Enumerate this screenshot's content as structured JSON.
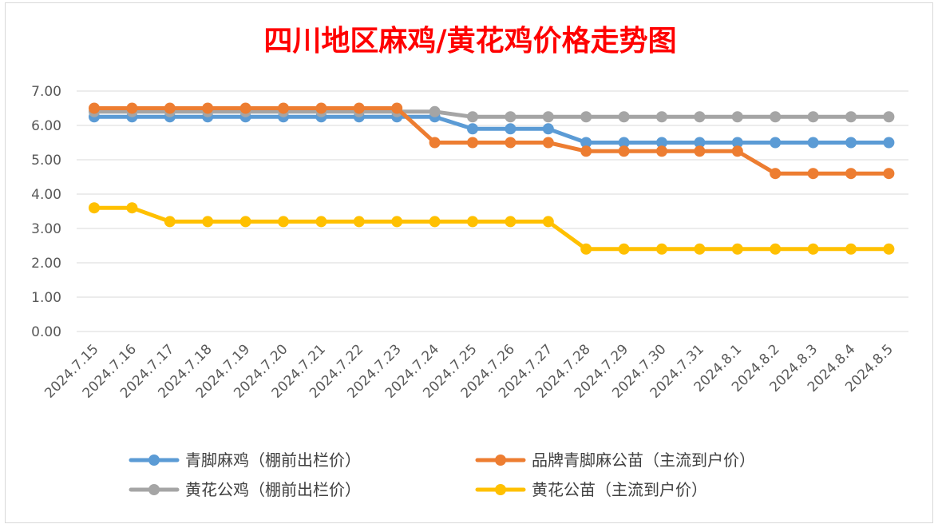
{
  "chart_data": {
    "type": "line",
    "title": "四川地区麻鸡/黄花鸡价格走势图",
    "xlabel": "",
    "ylabel": "",
    "ylim": [
      0,
      7
    ],
    "yticks": [
      "0.00",
      "1.00",
      "2.00",
      "3.00",
      "4.00",
      "5.00",
      "6.00",
      "7.00"
    ],
    "grid": true,
    "legend_position": "bottom",
    "categories": [
      "2024.7.15",
      "2024.7.16",
      "2024.7.17",
      "2024.7.18",
      "2024.7.19",
      "2024.7.20",
      "2024.7.21",
      "2024.7.22",
      "2024.7.23",
      "2024.7.24",
      "2024.7.25",
      "2024.7.26",
      "2024.7.27",
      "2024.7.28",
      "2024.7.29",
      "2024.7.30",
      "2024.7.31",
      "2024.8.1",
      "2024.8.2",
      "2024.8.3",
      "2024.8.4",
      "2024.8.5"
    ],
    "series": [
      {
        "name": "青脚麻鸡（棚前出栏价）",
        "color": "#5b9bd5",
        "values": [
          6.25,
          6.25,
          6.25,
          6.25,
          6.25,
          6.25,
          6.25,
          6.25,
          6.25,
          6.25,
          5.9,
          5.9,
          5.9,
          5.5,
          5.5,
          5.5,
          5.5,
          5.5,
          5.5,
          5.5,
          5.5,
          5.5
        ]
      },
      {
        "name": "品牌青脚麻公苗（主流到户价）",
        "color": "#ed7d31",
        "values": [
          6.5,
          6.5,
          6.5,
          6.5,
          6.5,
          6.5,
          6.5,
          6.5,
          6.5,
          5.5,
          5.5,
          5.5,
          5.5,
          5.25,
          5.25,
          5.25,
          5.25,
          5.25,
          4.6,
          4.6,
          4.6,
          4.6
        ]
      },
      {
        "name": "黄花公鸡（棚前出栏价）",
        "color": "#a5a5a5",
        "values": [
          6.4,
          6.4,
          6.4,
          6.4,
          6.4,
          6.4,
          6.4,
          6.4,
          6.4,
          6.4,
          6.25,
          6.25,
          6.25,
          6.25,
          6.25,
          6.25,
          6.25,
          6.25,
          6.25,
          6.25,
          6.25,
          6.25
        ]
      },
      {
        "name": "黄花公苗（主流到户价）",
        "color": "#ffc000",
        "values": [
          3.6,
          3.6,
          3.2,
          3.2,
          3.2,
          3.2,
          3.2,
          3.2,
          3.2,
          3.2,
          3.2,
          3.2,
          3.2,
          2.4,
          2.4,
          2.4,
          2.4,
          2.4,
          2.4,
          2.4,
          2.4,
          2.4
        ]
      }
    ],
    "draw_order": [
      3,
      0,
      2,
      1
    ]
  }
}
